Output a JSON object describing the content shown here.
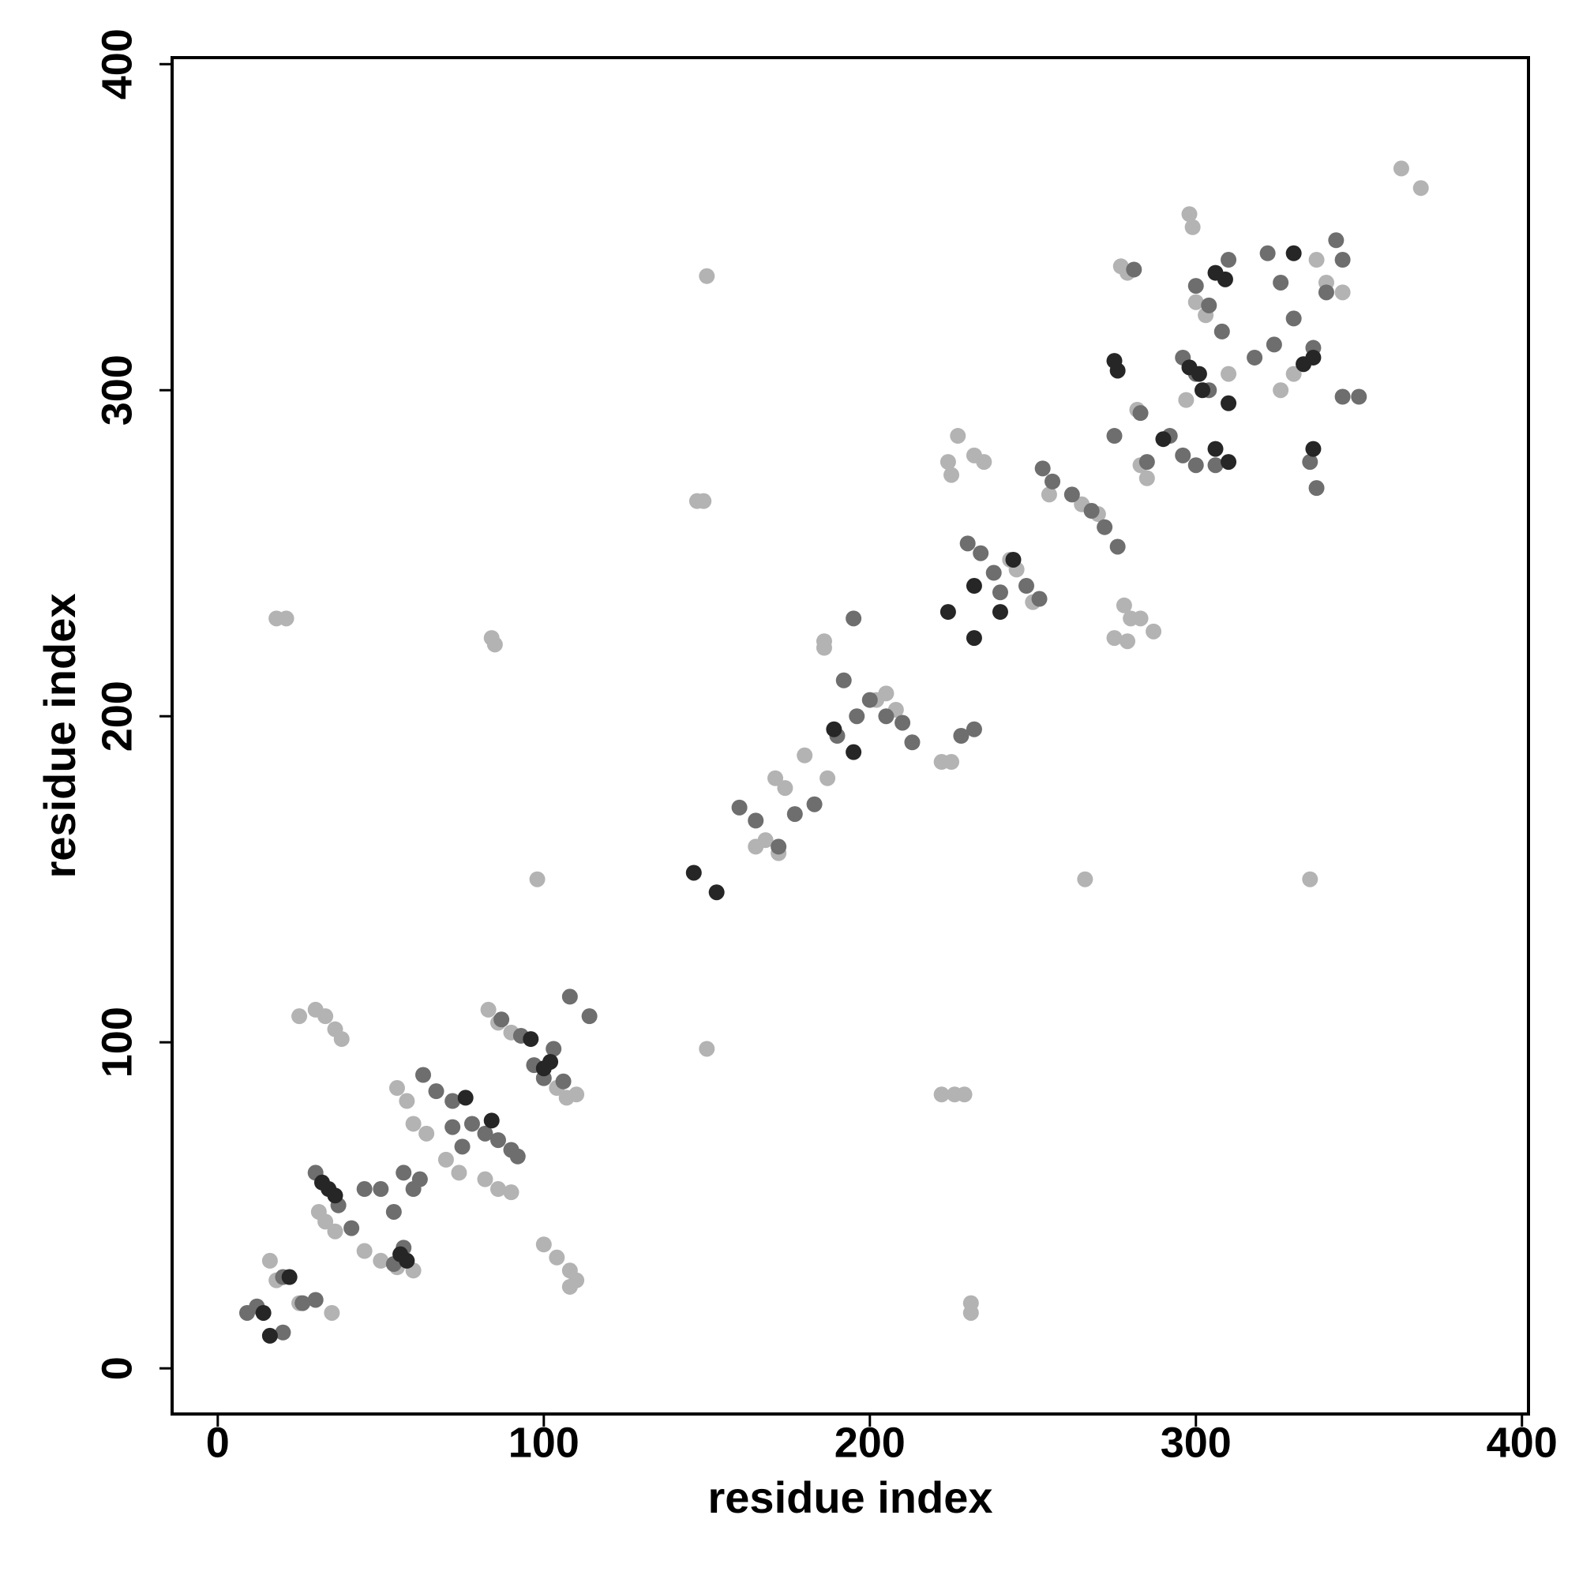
{
  "chart_data": {
    "type": "scatter",
    "x_label": "residue index",
    "y_label": "residue index",
    "xlim": [
      -14,
      402
    ],
    "ylim": [
      -14,
      402
    ],
    "xticks": [
      0,
      100,
      200,
      300,
      400
    ],
    "yticks": [
      0,
      100,
      200,
      300,
      400
    ],
    "grid": false,
    "series": [
      {
        "color": "#b3b3b3",
        "x": [
          363,
          369,
          298,
          299,
          150,
          277,
          279,
          282,
          147,
          149,
          18,
          21,
          84,
          85,
          227,
          224,
          232,
          235,
          225,
          186,
          186,
          278,
          280,
          283,
          287,
          275,
          279,
          98,
          335,
          266,
          222,
          225,
          180,
          187,
          171,
          174,
          168,
          172,
          165,
          202,
          205,
          208,
          229,
          222,
          226,
          150,
          231,
          231,
          25,
          30,
          33,
          36,
          38,
          83,
          86,
          90,
          107,
          110,
          104,
          55,
          58,
          60,
          64,
          70,
          74,
          82,
          86,
          90,
          31,
          33,
          36,
          45,
          50,
          55,
          60,
          100,
          104,
          108,
          110,
          108,
          16,
          18,
          25,
          35,
          300,
          303,
          297,
          310,
          326,
          330,
          337,
          340,
          345,
          255,
          265,
          270,
          283,
          285,
          243,
          245,
          250
        ],
        "values": [
          368,
          362,
          354,
          350,
          335,
          338,
          336,
          294,
          266,
          266,
          230,
          230,
          224,
          222,
          286,
          278,
          280,
          278,
          274,
          223,
          221,
          234,
          230,
          230,
          226,
          224,
          223,
          150,
          150,
          150,
          186,
          186,
          188,
          181,
          181,
          178,
          162,
          158,
          160,
          205,
          207,
          202,
          84,
          84,
          84,
          98,
          20,
          17,
          108,
          110,
          108,
          104,
          101,
          110,
          106,
          103,
          83,
          84,
          86,
          86,
          82,
          75,
          72,
          64,
          60,
          58,
          55,
          54,
          48,
          45,
          42,
          36,
          33,
          31,
          30,
          38,
          34,
          30,
          27,
          25,
          33,
          27,
          20,
          17,
          327,
          323,
          297,
          305,
          300,
          305,
          340,
          333,
          330,
          268,
          265,
          262,
          277,
          273,
          248,
          245,
          235
        ]
      },
      {
        "color": "#6e6e6e",
        "x": [
          9,
          12,
          20,
          26,
          30,
          20,
          30,
          37,
          41,
          45,
          50,
          54,
          57,
          60,
          62,
          54,
          57,
          63,
          67,
          72,
          78,
          82,
          86,
          90,
          92,
          72,
          75,
          87,
          93,
          97,
          100,
          106,
          108,
          114,
          103,
          160,
          165,
          172,
          177,
          183,
          190,
          192,
          196,
          200,
          205,
          210,
          213,
          195,
          230,
          234,
          238,
          240,
          248,
          252,
          228,
          232,
          253,
          256,
          262,
          268,
          272,
          276,
          281,
          275,
          283,
          285,
          292,
          296,
          296,
          300,
          304,
          300,
          304,
          308,
          310,
          322,
          326,
          330,
          324,
          318,
          335,
          337,
          336,
          343,
          345,
          340,
          345,
          350,
          300,
          306
        ],
        "values": [
          17,
          19,
          11,
          20,
          21,
          28,
          60,
          50,
          43,
          55,
          55,
          48,
          60,
          55,
          58,
          32,
          37,
          90,
          85,
          82,
          75,
          72,
          70,
          67,
          65,
          74,
          68,
          107,
          102,
          93,
          89,
          88,
          114,
          108,
          98,
          172,
          168,
          160,
          170,
          173,
          194,
          211,
          200,
          205,
          200,
          198,
          192,
          230,
          253,
          250,
          244,
          238,
          240,
          236,
          194,
          196,
          276,
          272,
          268,
          263,
          258,
          252,
          337,
          286,
          293,
          278,
          286,
          280,
          310,
          305,
          300,
          332,
          326,
          318,
          340,
          342,
          333,
          322,
          314,
          310,
          278,
          270,
          313,
          346,
          340,
          330,
          298,
          298,
          277,
          277
        ]
      },
      {
        "color": "#262626",
        "x": [
          14,
          16,
          22,
          32,
          34,
          36,
          56,
          58,
          76,
          84,
          96,
          100,
          102,
          146,
          153,
          189,
          195,
          224,
          232,
          232,
          240,
          244,
          275,
          276,
          306,
          309,
          302,
          310,
          306,
          310,
          333,
          336,
          330,
          336,
          298,
          301,
          290
        ],
        "values": [
          17,
          10,
          28,
          57,
          55,
          53,
          35,
          33,
          83,
          76,
          101,
          92,
          94,
          152,
          146,
          196,
          189,
          232,
          224,
          240,
          232,
          248,
          309,
          306,
          336,
          334,
          300,
          296,
          282,
          278,
          308,
          310,
          342,
          282,
          307,
          305,
          285
        ]
      }
    ]
  }
}
